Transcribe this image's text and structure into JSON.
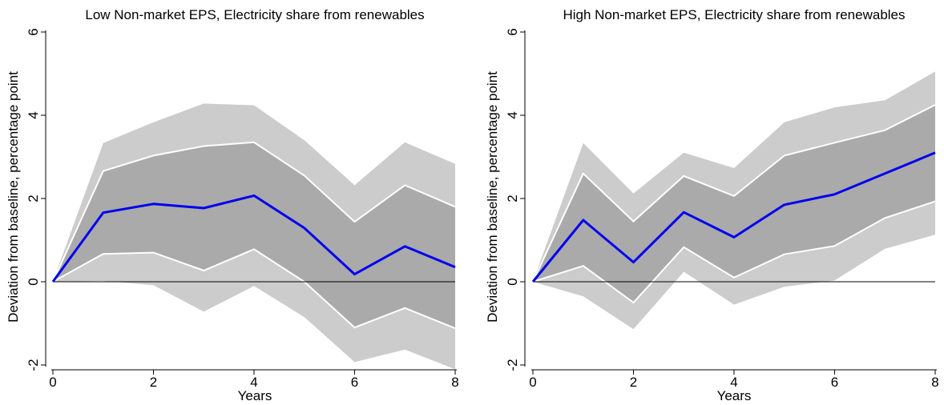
{
  "chart_data": [
    {
      "type": "area",
      "title": "Low Non-market EPS, Electricity share from renewables",
      "xlabel": "Years",
      "ylabel": "Deviation from baseline, percentage point",
      "xlim": [
        0,
        8
      ],
      "ylim": [
        -2,
        6
      ],
      "xticks": [
        "0",
        "2",
        "4",
        "6",
        "8"
      ],
      "yticks": [
        "-2",
        "0",
        "2",
        "4",
        "6"
      ],
      "grid": false,
      "x": [
        0,
        1,
        2,
        3,
        4,
        5,
        6,
        7,
        8
      ],
      "series": [
        {
          "role": "outer-lower",
          "values": [
            0,
            0.02,
            -0.08,
            -0.72,
            -0.1,
            -0.85,
            -1.93,
            -1.63,
            -2.1
          ]
        },
        {
          "role": "outer-upper",
          "values": [
            0,
            3.33,
            3.83,
            4.28,
            4.24,
            3.4,
            2.32,
            3.35,
            2.83
          ]
        },
        {
          "role": "inner-lower",
          "values": [
            0,
            0.67,
            0.7,
            0.27,
            0.78,
            0.0,
            -1.1,
            -0.63,
            -1.12
          ]
        },
        {
          "role": "inner-upper",
          "values": [
            0,
            2.66,
            3.03,
            3.26,
            3.35,
            2.55,
            1.44,
            2.32,
            1.8
          ]
        },
        {
          "role": "estimate",
          "values": [
            0,
            1.66,
            1.87,
            1.77,
            2.07,
            1.29,
            0.18,
            0.85,
            0.35
          ]
        }
      ]
    },
    {
      "type": "area",
      "title": "High Non-market EPS, Electricity share from renewables",
      "xlabel": "Years",
      "ylabel": "Deviation from baseline, percentage point",
      "xlim": [
        0,
        8
      ],
      "ylim": [
        -2,
        6
      ],
      "xticks": [
        "0",
        "2",
        "4",
        "6",
        "8"
      ],
      "yticks": [
        "-2",
        "0",
        "2",
        "4",
        "6"
      ],
      "grid": false,
      "x": [
        0,
        1,
        2,
        3,
        4,
        5,
        6,
        7,
        8
      ],
      "series": [
        {
          "role": "outer-lower",
          "values": [
            0,
            -0.35,
            -1.14,
            0.24,
            -0.55,
            -0.12,
            0.03,
            0.79,
            1.13
          ]
        },
        {
          "role": "outer-upper",
          "values": [
            0,
            3.33,
            2.12,
            3.1,
            2.73,
            3.83,
            4.19,
            4.36,
            5.05
          ]
        },
        {
          "role": "inner-lower",
          "values": [
            0,
            0.38,
            -0.5,
            0.83,
            0.1,
            0.66,
            0.86,
            1.53,
            1.93
          ]
        },
        {
          "role": "inner-upper",
          "values": [
            0,
            2.6,
            1.45,
            2.54,
            2.06,
            3.03,
            3.34,
            3.64,
            4.25
          ]
        },
        {
          "role": "estimate",
          "values": [
            0,
            1.48,
            0.47,
            1.67,
            1.07,
            1.85,
            2.1,
            2.6,
            3.1
          ]
        }
      ]
    }
  ],
  "colors": {
    "outer_band": "#cccccc",
    "inner_band": "#aaaaaa",
    "band_edge": "#ffffff",
    "estimate_line": "#0000ee",
    "zero_line": "#000000"
  }
}
